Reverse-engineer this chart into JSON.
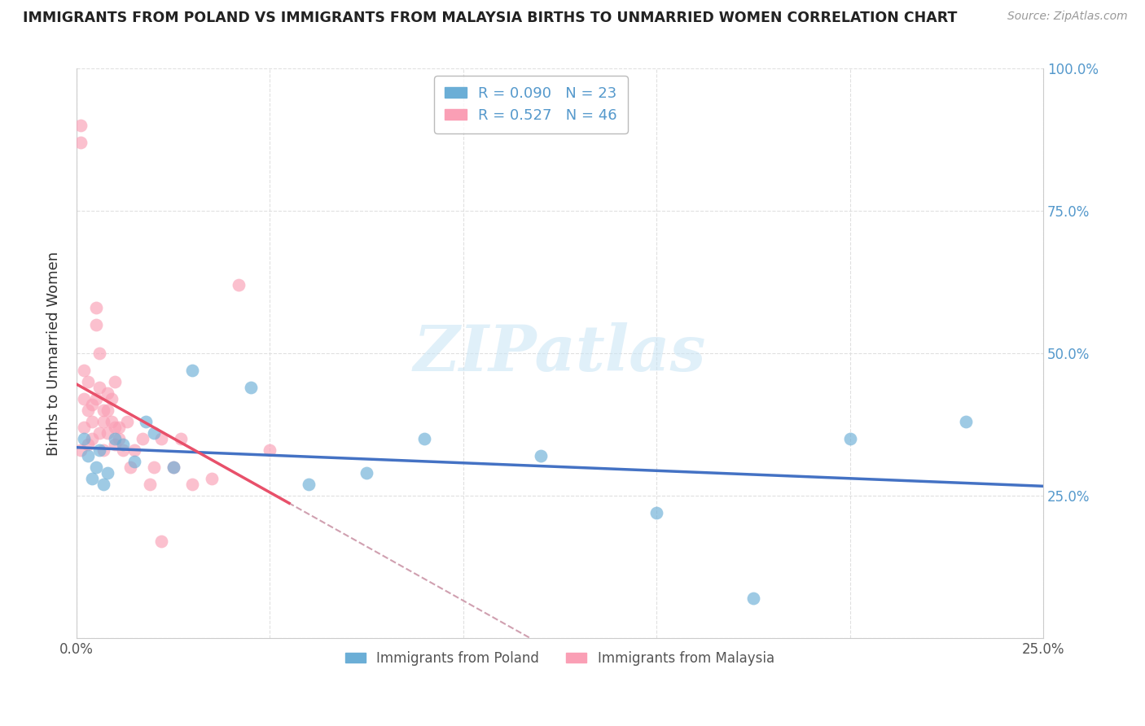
{
  "title": "IMMIGRANTS FROM POLAND VS IMMIGRANTS FROM MALAYSIA BIRTHS TO UNMARRIED WOMEN CORRELATION CHART",
  "source": "Source: ZipAtlas.com",
  "ylabel": "Births to Unmarried Women",
  "xlim": [
    0.0,
    0.25
  ],
  "ylim": [
    0.0,
    1.0
  ],
  "poland_color": "#6baed6",
  "malaysia_color": "#fa9fb5",
  "poland_R": 0.09,
  "poland_N": 23,
  "malaysia_R": 0.527,
  "malaysia_N": 46,
  "legend_label_poland": "Immigrants from Poland",
  "legend_label_malaysia": "Immigrants from Malaysia",
  "watermark": "ZIPatlas",
  "poland_line_color": "#4472c4",
  "malaysia_line_color": "#e8506a",
  "malaysia_dash_color": "#d0a0b0",
  "tick_color": "#5599cc",
  "poland_points_x": [
    0.002,
    0.003,
    0.004,
    0.005,
    0.006,
    0.007,
    0.008,
    0.01,
    0.012,
    0.015,
    0.018,
    0.02,
    0.025,
    0.03,
    0.045,
    0.06,
    0.075,
    0.09,
    0.12,
    0.15,
    0.175,
    0.2,
    0.23
  ],
  "poland_points_y": [
    0.35,
    0.32,
    0.28,
    0.3,
    0.33,
    0.27,
    0.29,
    0.35,
    0.34,
    0.31,
    0.38,
    0.36,
    0.3,
    0.47,
    0.44,
    0.27,
    0.29,
    0.35,
    0.32,
    0.22,
    0.07,
    0.35,
    0.38
  ],
  "malaysia_points_x": [
    0.001,
    0.001,
    0.001,
    0.002,
    0.002,
    0.002,
    0.003,
    0.003,
    0.003,
    0.004,
    0.004,
    0.004,
    0.005,
    0.005,
    0.005,
    0.006,
    0.006,
    0.006,
    0.007,
    0.007,
    0.007,
    0.008,
    0.008,
    0.008,
    0.009,
    0.009,
    0.01,
    0.01,
    0.01,
    0.011,
    0.011,
    0.012,
    0.013,
    0.014,
    0.015,
    0.017,
    0.019,
    0.02,
    0.022,
    0.022,
    0.025,
    0.027,
    0.03,
    0.035,
    0.042,
    0.05
  ],
  "malaysia_points_y": [
    0.9,
    0.87,
    0.33,
    0.37,
    0.42,
    0.47,
    0.34,
    0.4,
    0.45,
    0.38,
    0.35,
    0.41,
    0.58,
    0.55,
    0.42,
    0.36,
    0.44,
    0.5,
    0.4,
    0.33,
    0.38,
    0.36,
    0.4,
    0.43,
    0.38,
    0.42,
    0.34,
    0.37,
    0.45,
    0.37,
    0.35,
    0.33,
    0.38,
    0.3,
    0.33,
    0.35,
    0.27,
    0.3,
    0.35,
    0.17,
    0.3,
    0.35,
    0.27,
    0.28,
    0.62,
    0.33
  ]
}
